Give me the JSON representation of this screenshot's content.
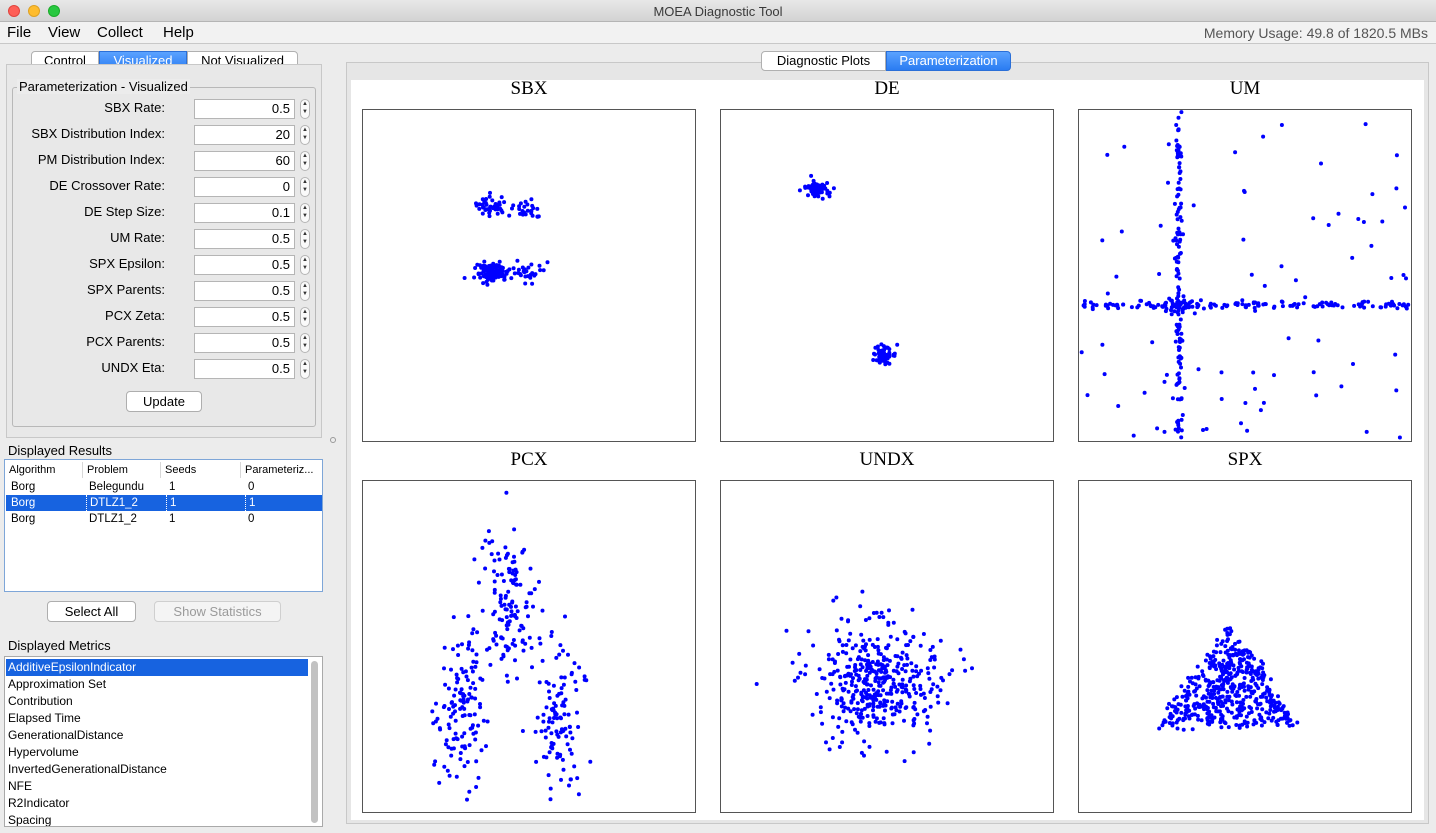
{
  "window": {
    "title": "MOEA Diagnostic Tool"
  },
  "menu": [
    "File",
    "View",
    "Collect",
    "Help"
  ],
  "memory_usage": "Memory Usage: 49.8 of 1820.5 MBs",
  "left_tabs": {
    "items": [
      "Control",
      "Visualized",
      "Not Visualized"
    ],
    "selected": "Visualized"
  },
  "parameterization": {
    "title": "Parameterization - Visualized",
    "fields": [
      {
        "label": "SBX Rate:",
        "value": "0.5"
      },
      {
        "label": "SBX Distribution Index:",
        "value": "20"
      },
      {
        "label": "PM Distribution Index:",
        "value": "60"
      },
      {
        "label": "DE Crossover Rate:",
        "value": "0"
      },
      {
        "label": "DE Step Size:",
        "value": "0.1"
      },
      {
        "label": "UM Rate:",
        "value": "0.5"
      },
      {
        "label": "SPX Epsilon:",
        "value": "0.5"
      },
      {
        "label": "SPX Parents:",
        "value": "0.5"
      },
      {
        "label": "PCX Zeta:",
        "value": "0.5"
      },
      {
        "label": "PCX Parents:",
        "value": "0.5"
      },
      {
        "label": "UNDX Eta:",
        "value": "0.5"
      }
    ],
    "update_label": "Update"
  },
  "displayed_results": {
    "title": "Displayed Results",
    "columns": [
      "Algorithm",
      "Problem",
      "Seeds",
      "Parameteriz..."
    ],
    "rows": [
      [
        "Borg",
        "Belegundu",
        "1",
        "0"
      ],
      [
        "Borg",
        "DTLZ1_2",
        "1",
        "1"
      ],
      [
        "Borg",
        "DTLZ1_2",
        "1",
        "0"
      ]
    ],
    "selected_row": 1,
    "select_all_label": "Select All",
    "show_statistics_label": "Show Statistics"
  },
  "displayed_metrics": {
    "title": "Displayed Metrics",
    "items": [
      "AdditiveEpsilonIndicator",
      "Approximation Set",
      "Contribution",
      "Elapsed Time",
      "GenerationalDistance",
      "Hypervolume",
      "InvertedGenerationalDistance",
      "NFE",
      "R2Indicator",
      "Spacing"
    ],
    "selected": 0
  },
  "right_tabs": {
    "items": [
      "Diagnostic Plots",
      "Parameterization"
    ],
    "selected": "Parameterization"
  },
  "colors": {
    "accent": "#2a7cf2",
    "selection": "#1763e0",
    "points": "#0000ff"
  },
  "plots": {
    "titles": [
      "SBX",
      "DE",
      "UM",
      "PCX",
      "UNDX",
      "SPX"
    ],
    "marker": "filled-circle",
    "chart_data": [
      {
        "type": "scatter",
        "title": "SBX",
        "clusters": [
          {
            "cx": 0.39,
            "cy": 0.29,
            "n": 40
          },
          {
            "cx": 0.49,
            "cy": 0.3,
            "n": 25
          },
          {
            "cx": 0.39,
            "cy": 0.49,
            "n": 120
          },
          {
            "cx": 0.49,
            "cy": 0.49,
            "n": 30
          }
        ]
      },
      {
        "type": "scatter",
        "title": "DE",
        "clusters": [
          {
            "cx": 0.29,
            "cy": 0.24,
            "n": 60
          },
          {
            "cx": 0.49,
            "cy": 0.74,
            "n": 50
          }
        ]
      },
      {
        "type": "scatter",
        "title": "UM",
        "pattern": "cross",
        "cx": 0.3,
        "cy": 0.59
      },
      {
        "type": "scatter",
        "title": "PCX",
        "pattern": "three-clusters"
      },
      {
        "type": "scatter",
        "title": "UNDX",
        "pattern": "blob"
      },
      {
        "type": "scatter",
        "title": "SPX",
        "pattern": "triangle"
      }
    ]
  }
}
